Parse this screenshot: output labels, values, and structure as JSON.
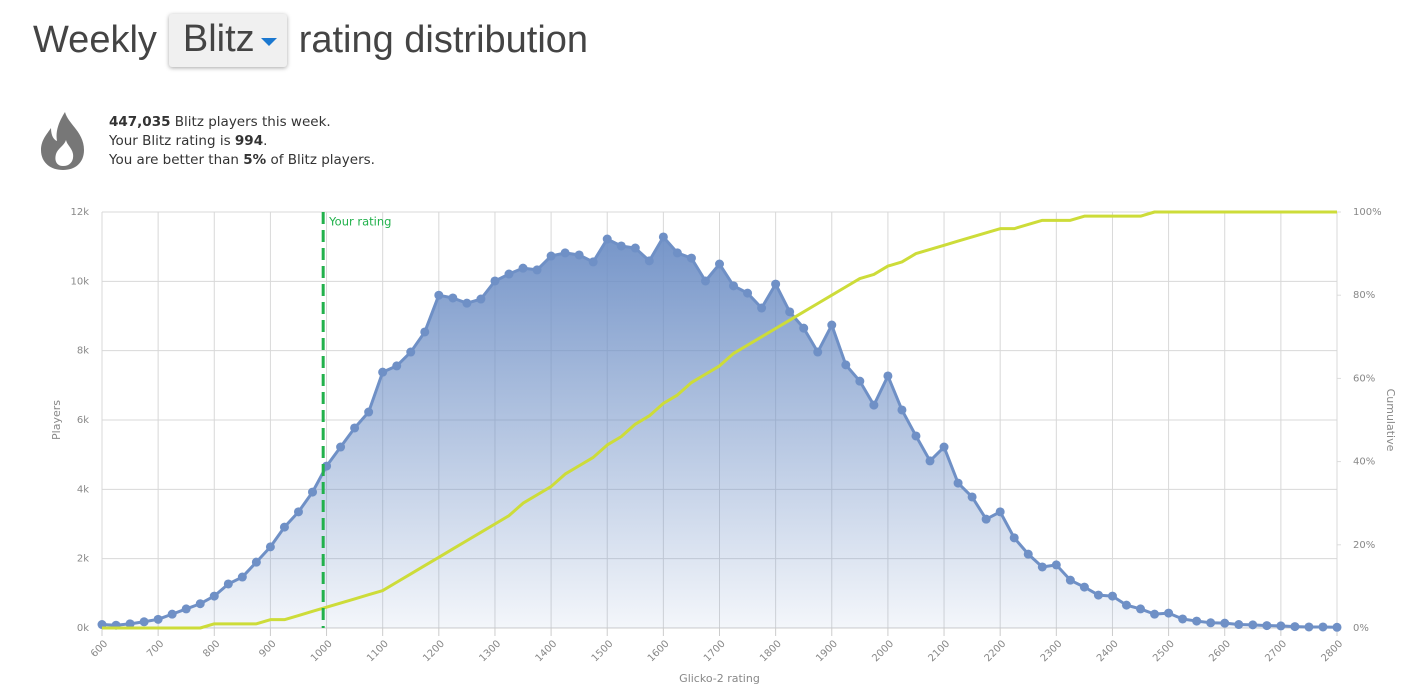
{
  "header": {
    "title_start": "Weekly",
    "variant": "Blitz",
    "title_end": "rating distribution"
  },
  "info": {
    "line1": [
      "447,035",
      " Blitz players this week."
    ],
    "line2": [
      "Your Blitz rating is ",
      "."
    ],
    "line3": [
      "You are better than ",
      "5%",
      " of Blitz players."
    ]
  },
  "chart_data": {
    "type": "area",
    "xlabel": "Glicko-2 rating",
    "your_rating": 994,
    "your_rating_label": "Your rating",
    "x": [
      600,
      625,
      650,
      675,
      700,
      725,
      750,
      775,
      800,
      825,
      850,
      875,
      900,
      925,
      950,
      975,
      1000,
      1025,
      1050,
      1075,
      1100,
      1125,
      1150,
      1175,
      1200,
      1225,
      1250,
      1275,
      1300,
      1325,
      1350,
      1375,
      1400,
      1425,
      1450,
      1475,
      1500,
      1525,
      1550,
      1575,
      1600,
      1625,
      1650,
      1675,
      1700,
      1725,
      1750,
      1775,
      1800,
      1825,
      1850,
      1875,
      1900,
      1925,
      1950,
      1975,
      2000,
      2025,
      2050,
      2075,
      2100,
      2125,
      2150,
      2175,
      2200,
      2225,
      2250,
      2275,
      2300,
      2325,
      2350,
      2375,
      2400,
      2425,
      2450,
      2475,
      2500,
      2525,
      2550,
      2575,
      2600,
      2625,
      2650,
      2675,
      2700,
      2725,
      2750,
      2775,
      2800
    ],
    "series": [
      {
        "name": "Players",
        "color": "#6f90c6",
        "values": [
          100,
          80,
          120,
          180,
          250,
          400,
          550,
          700,
          920,
          1270,
          1470,
          1900,
          2340,
          2910,
          3350,
          3920,
          4670,
          5220,
          5770,
          6230,
          7380,
          7560,
          7960,
          8540,
          9600,
          9520,
          9370,
          9490,
          10010,
          10210,
          10380,
          10330,
          10730,
          10820,
          10760,
          10560,
          11220,
          11020,
          10960,
          10590,
          11280,
          10820,
          10670,
          10010,
          10500,
          9870,
          9660,
          9230,
          9920,
          9120,
          8650,
          7960,
          8740,
          7590,
          7120,
          6430,
          7270,
          6290,
          5540,
          4820,
          5220,
          4180,
          3780,
          3140,
          3350,
          2600,
          2130,
          1760,
          1820,
          1380,
          1180,
          950,
          920,
          660,
          550,
          400,
          430,
          260,
          200,
          150,
          140,
          100,
          90,
          70,
          60,
          40,
          30,
          30,
          20
        ]
      },
      {
        "name": "Cumulative",
        "color": "#cddc39",
        "axis": "y2",
        "values": [
          0,
          0,
          0,
          0,
          0,
          0,
          0,
          0,
          1,
          1,
          1,
          1,
          2,
          2,
          3,
          4,
          5,
          6,
          7,
          8,
          9,
          11,
          13,
          15,
          17,
          19,
          21,
          23,
          25,
          27,
          30,
          32,
          34,
          37,
          39,
          41,
          44,
          46,
          49,
          51,
          54,
          56,
          59,
          61,
          63,
          66,
          68,
          70,
          72,
          74,
          76,
          78,
          80,
          82,
          84,
          85,
          87,
          88,
          90,
          91,
          92,
          93,
          94,
          95,
          96,
          96,
          97,
          98,
          98,
          98,
          99,
          99,
          99,
          99,
          99,
          100,
          100,
          100,
          100,
          100,
          100,
          100,
          100,
          100,
          100,
          100,
          100,
          100,
          100
        ]
      }
    ],
    "xlim": [
      600,
      2800
    ],
    "xticks": [
      600,
      700,
      800,
      900,
      1000,
      1100,
      1200,
      1300,
      1400,
      1500,
      1600,
      1700,
      1800,
      1900,
      2000,
      2100,
      2200,
      2300,
      2400,
      2500,
      2600,
      2700,
      2800
    ],
    "ylim": [
      0,
      12000
    ],
    "yticks": [
      {
        "value": 0,
        "label": "0k"
      },
      {
        "value": 2000,
        "label": "2k"
      },
      {
        "value": 4000,
        "label": "4k"
      },
      {
        "value": 6000,
        "label": "6k"
      },
      {
        "value": 8000,
        "label": "8k"
      },
      {
        "value": 10000,
        "label": "10k"
      },
      {
        "value": 12000,
        "label": "12k"
      }
    ],
    "y2lim": [
      0,
      100
    ],
    "y2ticks": [
      {
        "value": 0,
        "label": "0%"
      },
      {
        "value": 20,
        "label": "20%"
      },
      {
        "value": 40,
        "label": "40%"
      },
      {
        "value": 60,
        "label": "60%"
      },
      {
        "value": 80,
        "label": "80%"
      },
      {
        "value": 100,
        "label": "100%"
      }
    ],
    "grid": true
  }
}
